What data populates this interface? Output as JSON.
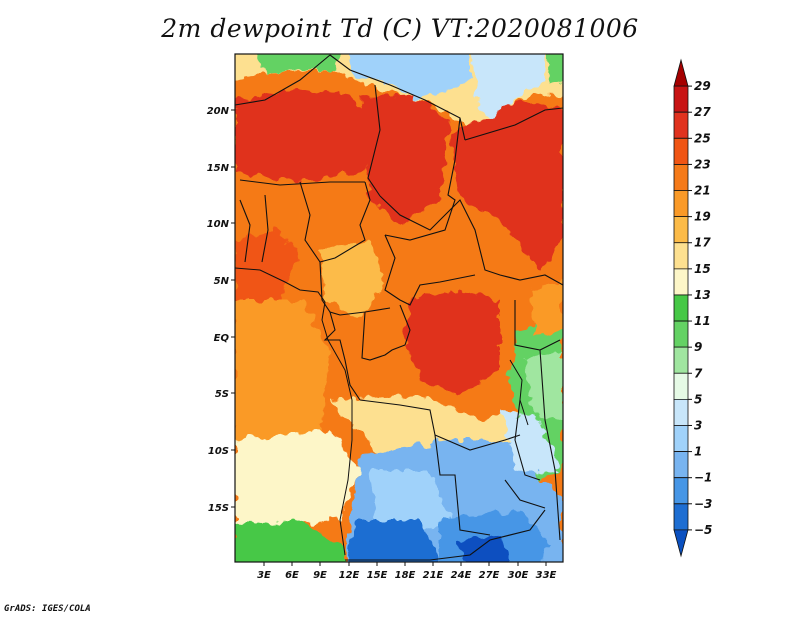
{
  "title": "2m dewpoint Td (C) VT:2020081006",
  "footer": "GrADS: IGES/COLA",
  "map": {
    "y_ticks": [
      "20N",
      "15N",
      "10N",
      "5N",
      "EQ",
      "5S",
      "10S",
      "15S"
    ],
    "x_ticks": [
      "3E",
      "6E",
      "9E",
      "12E",
      "15E",
      "18E",
      "21E",
      "24E",
      "27E",
      "30E",
      "33E"
    ]
  },
  "colorbar": {
    "labels": [
      "29",
      "27",
      "25",
      "23",
      "21",
      "19",
      "17",
      "15",
      "13",
      "11",
      "9",
      "7",
      "5",
      "3",
      "1",
      "−1",
      "−3",
      "−5"
    ],
    "colors": [
      "#a50000",
      "#c81414",
      "#e0321e",
      "#f05514",
      "#f57a19",
      "#fa9a28",
      "#fcbb48",
      "#fde090",
      "#fdf6c8",
      "#46c846",
      "#64d264",
      "#a0e6a0",
      "#e6fae6",
      "#c8e6fa",
      "#a0d2fa",
      "#78b4f0",
      "#4696e6",
      "#1e6ed2",
      "#0a50c0"
    ]
  }
}
